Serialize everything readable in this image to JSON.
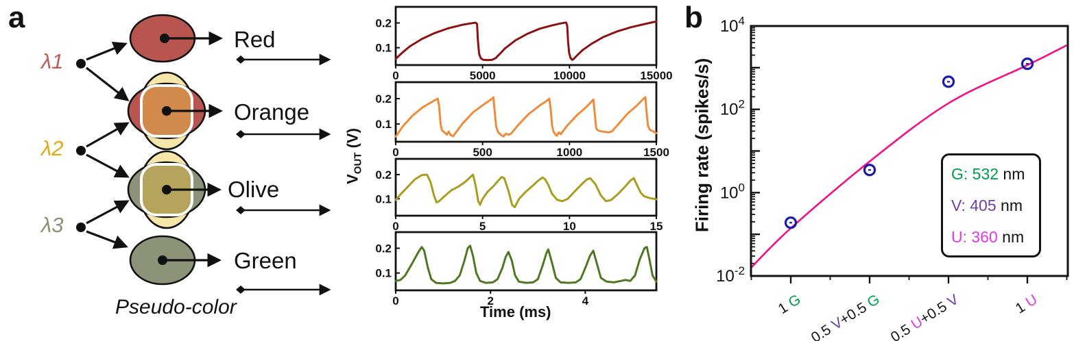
{
  "panels": {
    "a": "a",
    "b": "b"
  },
  "panel_a": {
    "inputs": [
      {
        "label": "λ1",
        "color": "#bb5e58"
      },
      {
        "label": "λ2",
        "color": "#e8a812"
      },
      {
        "label": "λ3",
        "color": "#879272"
      }
    ],
    "pseudo_colors": [
      {
        "name": "Red",
        "type": "solid",
        "fill": "#b9554f"
      },
      {
        "name": "Orange",
        "type": "overlap",
        "vertical_fill": "#f7e6a9",
        "horizontal_fill": "#b9554f",
        "center_fill": "#d28a4c"
      },
      {
        "name": "Olive",
        "type": "overlap",
        "vertical_fill": "#f7e6a9",
        "horizontal_fill": "#8b9379",
        "center_fill": "#b4a45c"
      },
      {
        "name": "Green",
        "type": "solid",
        "fill": "#8b9379"
      }
    ],
    "pseudo_color_label": "Pseudo-color",
    "outline_color": "#111111"
  },
  "traces_axis": {
    "ylabel_main": "V",
    "ylabel_sub": "OUT",
    "ylabel_unit": " (V)",
    "xlabel": "Time (ms)"
  },
  "chart_data": [
    {
      "type": "line",
      "id": "trace-red",
      "color": "#8c1212",
      "ylim": [
        0.03,
        0.265
      ],
      "yticks": [
        "0.1",
        "0.2"
      ],
      "xlim": [
        0,
        15000
      ],
      "xticks": [
        0,
        5000,
        10000,
        15000
      ],
      "points": [
        [
          0,
          0.055
        ],
        [
          300,
          0.075
        ],
        [
          800,
          0.105
        ],
        [
          1500,
          0.135
        ],
        [
          2200,
          0.158
        ],
        [
          3000,
          0.178
        ],
        [
          3800,
          0.192
        ],
        [
          4300,
          0.198
        ],
        [
          4600,
          0.201
        ],
        [
          4680,
          0.196
        ],
        [
          4730,
          0.13
        ],
        [
          4800,
          0.075
        ],
        [
          4900,
          0.057
        ],
        [
          5050,
          0.051
        ],
        [
          5300,
          0.05
        ],
        [
          5550,
          0.051
        ],
        [
          5750,
          0.058
        ],
        [
          5950,
          0.072
        ],
        [
          6300,
          0.098
        ],
        [
          6900,
          0.13
        ],
        [
          7600,
          0.157
        ],
        [
          8300,
          0.177
        ],
        [
          9000,
          0.19
        ],
        [
          9500,
          0.198
        ],
        [
          9800,
          0.202
        ],
        [
          9870,
          0.19
        ],
        [
          9920,
          0.125
        ],
        [
          9980,
          0.08
        ],
        [
          10060,
          0.058
        ],
        [
          10160,
          0.051
        ],
        [
          10260,
          0.056
        ],
        [
          10420,
          0.068
        ],
        [
          10750,
          0.09
        ],
        [
          11250,
          0.115
        ],
        [
          11950,
          0.143
        ],
        [
          12750,
          0.166
        ],
        [
          13550,
          0.183
        ],
        [
          14350,
          0.196
        ],
        [
          15000,
          0.206
        ]
      ]
    },
    {
      "type": "line",
      "id": "trace-orange",
      "color": "#ef8c3c",
      "ylim": [
        0.03,
        0.265
      ],
      "yticks": [
        "0.1",
        "0.2"
      ],
      "xlim": [
        0,
        1500
      ],
      "xticks": [
        0,
        500,
        1000,
        1500
      ],
      "points": [
        [
          0,
          0.05
        ],
        [
          40,
          0.09
        ],
        [
          95,
          0.132
        ],
        [
          155,
          0.166
        ],
        [
          215,
          0.19
        ],
        [
          242,
          0.2
        ],
        [
          250,
          0.17
        ],
        [
          258,
          0.1
        ],
        [
          266,
          0.075
        ],
        [
          280,
          0.067
        ],
        [
          295,
          0.058
        ],
        [
          305,
          0.07
        ],
        [
          315,
          0.057
        ],
        [
          330,
          0.052
        ],
        [
          345,
          0.065
        ],
        [
          385,
          0.102
        ],
        [
          445,
          0.146
        ],
        [
          505,
          0.176
        ],
        [
          552,
          0.198
        ],
        [
          562,
          0.205
        ],
        [
          570,
          0.148
        ],
        [
          578,
          0.09
        ],
        [
          590,
          0.067
        ],
        [
          605,
          0.057
        ],
        [
          620,
          0.051
        ],
        [
          635,
          0.062
        ],
        [
          650,
          0.057
        ],
        [
          665,
          0.063
        ],
        [
          705,
          0.096
        ],
        [
          765,
          0.139
        ],
        [
          825,
          0.171
        ],
        [
          872,
          0.193
        ],
        [
          884,
          0.2
        ],
        [
          892,
          0.158
        ],
        [
          900,
          0.094
        ],
        [
          908,
          0.071
        ],
        [
          918,
          0.059
        ],
        [
          928,
          0.054
        ],
        [
          938,
          0.067
        ],
        [
          950,
          0.06
        ],
        [
          985,
          0.092
        ],
        [
          1045,
          0.136
        ],
        [
          1095,
          0.166
        ],
        [
          1128,
          0.189
        ],
        [
          1138,
          0.197
        ],
        [
          1146,
          0.138
        ],
        [
          1154,
          0.083
        ],
        [
          1165,
          0.074
        ],
        [
          1185,
          0.071
        ],
        [
          1205,
          0.069
        ],
        [
          1225,
          0.067
        ],
        [
          1245,
          0.071
        ],
        [
          1285,
          0.102
        ],
        [
          1335,
          0.141
        ],
        [
          1385,
          0.171
        ],
        [
          1422,
          0.196
        ],
        [
          1437,
          0.206
        ],
        [
          1444,
          0.148
        ],
        [
          1452,
          0.093
        ],
        [
          1463,
          0.077
        ],
        [
          1482,
          0.071
        ],
        [
          1500,
          0.064
        ]
      ]
    },
    {
      "type": "line",
      "id": "trace-olive",
      "color": "#a89d1f",
      "ylim": [
        0.03,
        0.265
      ],
      "yticks": [
        "0.1",
        "0.2"
      ],
      "xlim": [
        0,
        15
      ],
      "xticks": [
        0,
        5,
        10,
        15
      ],
      "points": [
        [
          0,
          0.095
        ],
        [
          0.3,
          0.12
        ],
        [
          0.7,
          0.15
        ],
        [
          1.1,
          0.18
        ],
        [
          1.5,
          0.198
        ],
        [
          1.8,
          0.2
        ],
        [
          2.0,
          0.17
        ],
        [
          2.2,
          0.115
        ],
        [
          2.35,
          0.085
        ],
        [
          2.5,
          0.09
        ],
        [
          2.8,
          0.11
        ],
        [
          3.2,
          0.135
        ],
        [
          3.6,
          0.15
        ],
        [
          4.0,
          0.17
        ],
        [
          4.3,
          0.19
        ],
        [
          4.45,
          0.2
        ],
        [
          4.6,
          0.155
        ],
        [
          4.75,
          0.09
        ],
        [
          4.85,
          0.075
        ],
        [
          5.0,
          0.1
        ],
        [
          5.3,
          0.13
        ],
        [
          5.6,
          0.15
        ],
        [
          5.9,
          0.175
        ],
        [
          6.1,
          0.19
        ],
        [
          6.25,
          0.185
        ],
        [
          6.5,
          0.13
        ],
        [
          6.7,
          0.075
        ],
        [
          6.85,
          0.065
        ],
        [
          7.1,
          0.1
        ],
        [
          7.5,
          0.13
        ],
        [
          7.9,
          0.155
        ],
        [
          8.2,
          0.175
        ],
        [
          8.45,
          0.188
        ],
        [
          8.6,
          0.18
        ],
        [
          8.8,
          0.155
        ],
        [
          9.0,
          0.12
        ],
        [
          9.3,
          0.095
        ],
        [
          9.6,
          0.09
        ],
        [
          9.9,
          0.1
        ],
        [
          10.3,
          0.13
        ],
        [
          10.7,
          0.16
        ],
        [
          11.0,
          0.18
        ],
        [
          11.2,
          0.185
        ],
        [
          11.5,
          0.16
        ],
        [
          11.8,
          0.115
        ],
        [
          12.1,
          0.09
        ],
        [
          12.4,
          0.095
        ],
        [
          12.8,
          0.12
        ],
        [
          13.2,
          0.15
        ],
        [
          13.5,
          0.175
        ],
        [
          13.7,
          0.185
        ],
        [
          13.9,
          0.155
        ],
        [
          14.1,
          0.125
        ],
        [
          14.3,
          0.11
        ],
        [
          14.6,
          0.103
        ],
        [
          15.0,
          0.098
        ]
      ]
    },
    {
      "type": "line",
      "id": "trace-green",
      "color": "#4f7722",
      "ylim": [
        0.03,
        0.265
      ],
      "yticks": [
        "0.1",
        "0.2"
      ],
      "xlim": [
        0,
        5.5
      ],
      "xticks": [
        0,
        2,
        4
      ],
      "points": [
        [
          0,
          0.068
        ],
        [
          0.1,
          0.072
        ],
        [
          0.2,
          0.09
        ],
        [
          0.35,
          0.14
        ],
        [
          0.48,
          0.185
        ],
        [
          0.55,
          0.205
        ],
        [
          0.6,
          0.19
        ],
        [
          0.68,
          0.12
        ],
        [
          0.75,
          0.075
        ],
        [
          0.85,
          0.06
        ],
        [
          1.0,
          0.058
        ],
        [
          1.15,
          0.06
        ],
        [
          1.25,
          0.068
        ],
        [
          1.35,
          0.09
        ],
        [
          1.45,
          0.15
        ],
        [
          1.52,
          0.2
        ],
        [
          1.57,
          0.21
        ],
        [
          1.63,
          0.17
        ],
        [
          1.7,
          0.1
        ],
        [
          1.78,
          0.068
        ],
        [
          1.9,
          0.06
        ],
        [
          2.05,
          0.062
        ],
        [
          2.15,
          0.075
        ],
        [
          2.25,
          0.12
        ],
        [
          2.32,
          0.165
        ],
        [
          2.38,
          0.185
        ],
        [
          2.45,
          0.15
        ],
        [
          2.52,
          0.09
        ],
        [
          2.6,
          0.065
        ],
        [
          2.75,
          0.06
        ],
        [
          2.9,
          0.062
        ],
        [
          3.0,
          0.075
        ],
        [
          3.1,
          0.13
        ],
        [
          3.18,
          0.18
        ],
        [
          3.22,
          0.195
        ],
        [
          3.3,
          0.14
        ],
        [
          3.38,
          0.08
        ],
        [
          3.48,
          0.062
        ],
        [
          3.65,
          0.06
        ],
        [
          3.8,
          0.062
        ],
        [
          3.9,
          0.075
        ],
        [
          4.0,
          0.12
        ],
        [
          4.1,
          0.17
        ],
        [
          4.17,
          0.19
        ],
        [
          4.25,
          0.135
        ],
        [
          4.33,
          0.08
        ],
        [
          4.45,
          0.065
        ],
        [
          4.6,
          0.062
        ],
        [
          4.75,
          0.068
        ],
        [
          4.85,
          0.072
        ],
        [
          4.95,
          0.068
        ],
        [
          5.05,
          0.09
        ],
        [
          5.15,
          0.155
        ],
        [
          5.25,
          0.2
        ],
        [
          5.3,
          0.205
        ],
        [
          5.35,
          0.16
        ],
        [
          5.42,
          0.09
        ],
        [
          5.5,
          0.065
        ]
      ]
    },
    {
      "type": "scatter",
      "id": "firing-rate",
      "ylabel": "Firing rate (spikes/s)",
      "yscale": "log",
      "ylim": [
        0.01,
        10000
      ],
      "yticks": [
        {
          "base": "10",
          "exp": "4",
          "value": 10000
        },
        {
          "base": "10",
          "exp": "2",
          "value": 100
        },
        {
          "base": "10",
          "exp": "0",
          "value": 1
        },
        {
          "base": "10",
          "exp": "-2",
          "value": 0.01
        }
      ],
      "palette": {
        "black": "#111111",
        "green": "#009a49",
        "violet": "#6a3fa5",
        "magenta": "#dd3ae0"
      },
      "categories": [
        {
          "value": 0.19,
          "label_segments": [
            [
              "1 ",
              "black"
            ],
            [
              "G",
              "green"
            ]
          ]
        },
        {
          "value": 3.5,
          "label_segments": [
            [
              "0.5 ",
              "black"
            ],
            [
              "V",
              "violet"
            ],
            [
              "+0.5 ",
              "black"
            ],
            [
              "G",
              "green"
            ]
          ]
        },
        {
          "value": 460,
          "label_segments": [
            [
              "0.5 ",
              "black"
            ],
            [
              "U",
              "magenta"
            ],
            [
              "+0.5 ",
              "black"
            ],
            [
              "V",
              "violet"
            ]
          ]
        },
        {
          "value": 1240,
          "label_segments": [
            [
              "1 ",
              "black"
            ],
            [
              "U",
              "magenta"
            ]
          ]
        }
      ],
      "marker": {
        "shape": "open-circle-dot",
        "color": "#1a1aaa"
      },
      "fit_line": {
        "color": "#f11084",
        "x_cat": [
          -0.5,
          0,
          1,
          2,
          3,
          3.5
        ],
        "y": [
          0.016,
          0.14,
          5.6,
          140,
          1150,
          3450
        ]
      },
      "legend": {
        "entries": [
          {
            "key": "G",
            "wavelength": "532",
            "colored_text": "G: 532",
            "rest": " nm",
            "color": "#009a49"
          },
          {
            "key": "V",
            "wavelength": "405",
            "colored_text": "V: 405",
            "rest": " nm",
            "color": "#6a3fa5"
          },
          {
            "key": "U",
            "wavelength": "360",
            "colored_text": "U: 360",
            "rest": " nm",
            "color": "#dd3ae0"
          }
        ]
      }
    }
  ]
}
